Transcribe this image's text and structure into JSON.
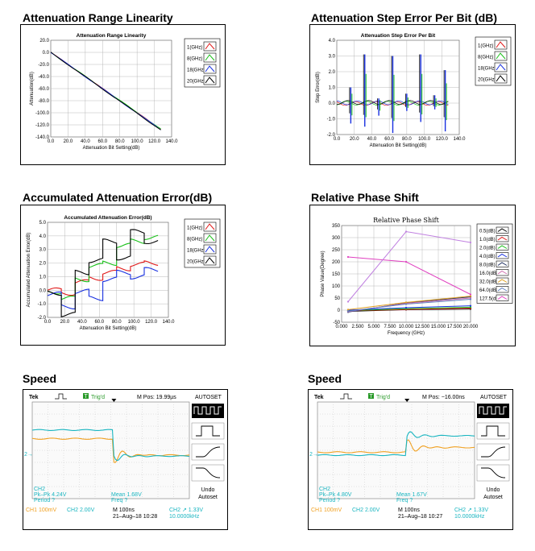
{
  "sections": {
    "s1": "Attenuation Range Linearity",
    "s2": "Attenuation Step Error Per Bit (dB)",
    "s3": "Accumulated Attenuation Error(dB)",
    "s4": "Relative Phase Shift",
    "s5": "Speed",
    "s6": "Speed"
  },
  "colors": {
    "red": "#e01818",
    "green": "#18c018",
    "blue": "#1830e0",
    "black": "#000000",
    "cyan": "#19b5c0",
    "orange": "#f0a020"
  },
  "chart_data": [
    {
      "type": "line",
      "title": "Attenuation Range Linearity",
      "xlabel": "Attenuation Bit Setting(dB)",
      "ylabel": "Attenuation(dB)",
      "xlim": [
        0,
        140
      ],
      "ylim": [
        -140,
        20
      ],
      "xticks": [
        "0.0",
        "20.0",
        "40.0",
        "60.0",
        "80.0",
        "100.0",
        "120.0",
        "140.0"
      ],
      "yticks": [
        "20.0",
        "0.0",
        "-20.0",
        "-40.0",
        "-60.0",
        "-80.0",
        "-100.0",
        "-120.0",
        "-140.0"
      ],
      "legend": [
        "1(GHz)",
        "8(GHz)",
        "18(GHz)",
        "20(GHz)"
      ],
      "series": [
        {
          "name": "1(GHz)",
          "x": [
            0,
            127.5
          ],
          "y": [
            0,
            -127.5
          ]
        },
        {
          "name": "8(GHz)",
          "x": [
            0,
            127.5
          ],
          "y": [
            0,
            -127
          ]
        },
        {
          "name": "18(GHz)",
          "x": [
            0,
            127.5
          ],
          "y": [
            0,
            -128
          ]
        },
        {
          "name": "20(GHz)",
          "x": [
            0,
            127.5
          ],
          "y": [
            0,
            -128.5
          ]
        }
      ]
    },
    {
      "type": "line",
      "title": "Attenuation Step Error Per Bit",
      "xlabel": "Attenuation Bit Setting(dB)",
      "ylabel": "Step Error(dB)",
      "xlim": [
        0,
        140
      ],
      "ylim": [
        -2,
        4
      ],
      "xticks": [
        "0.0",
        "20.0",
        "40.0",
        "60.0",
        "80.0",
        "100.0",
        "120.0",
        "140.0"
      ],
      "yticks": [
        "4.0",
        "3.0",
        "2.0",
        "1.0",
        "0.0",
        "-1.0",
        "-2.0"
      ],
      "legend": [
        "1(GHz)",
        "8(GHz)",
        "18(GHz)",
        "20(GHz)"
      ],
      "spikes": [
        {
          "x": 16,
          "hi": 1.0,
          "lo": -1.3
        },
        {
          "x": 32,
          "hi": 3.1,
          "lo": -1.5
        },
        {
          "x": 48,
          "hi": 0.3,
          "lo": -0.8
        },
        {
          "x": 64,
          "hi": 3.0,
          "lo": -1.9
        },
        {
          "x": 80,
          "hi": 0.6,
          "lo": -0.5
        },
        {
          "x": 96,
          "hi": 3.1,
          "lo": -1.2
        },
        {
          "x": 112,
          "hi": 0.5,
          "lo": -0.4
        },
        {
          "x": 124,
          "hi": 2.1,
          "lo": -1.8
        }
      ]
    },
    {
      "type": "line",
      "title": "Accumulated Attenuation Error(dB)",
      "xlabel": "Attenuation Bit Setting(dB)",
      "ylabel": "Accumulated Attenuation Error(dB)",
      "xlim": [
        0,
        140
      ],
      "ylim": [
        -2,
        5
      ],
      "xticks": [
        "0.0",
        "20.0",
        "40.0",
        "60.0",
        "80.0",
        "100.0",
        "120.0",
        "140.0"
      ],
      "yticks": [
        "5.0",
        "4.0",
        "3.0",
        "2.0",
        "1.0",
        "0.0",
        "-1.0",
        "-2.0"
      ],
      "legend": [
        "1(GHz)",
        "8(GHz)",
        "18(GHz)",
        "20(GHz)"
      ],
      "steps_x": [
        0,
        16,
        32,
        48,
        64,
        80,
        96,
        112,
        128
      ],
      "series": [
        {
          "name": "1(GHz)",
          "y": [
            0.0,
            -0.2,
            0.6,
            0.9,
            1.3,
            1.6,
            1.9,
            2.0
          ]
        },
        {
          "name": "8(GHz)",
          "y": [
            -0.1,
            -0.6,
            0.8,
            1.8,
            2.0,
            3.3,
            3.6,
            3.9
          ]
        },
        {
          "name": "18(GHz)",
          "y": [
            -0.3,
            -1.2,
            -0.1,
            -0.6,
            0.8,
            1.3,
            1.0,
            1.5
          ]
        },
        {
          "name": "20(GHz)",
          "y": [
            -0.2,
            -1.8,
            1.3,
            2.2,
            3.6,
            2.4,
            4.3,
            3.6
          ]
        }
      ]
    },
    {
      "type": "line",
      "title": "Relative Phase Shift",
      "xlabel": "Frequency (GHz)",
      "ylabel": "Phase Value(Degree)",
      "xlim": [
        0,
        20
      ],
      "ylim": [
        -50,
        350
      ],
      "xticks": [
        "0.000",
        "2.500",
        "5.000",
        "7.500",
        "10.000",
        "12.500",
        "15.000",
        "17.500",
        "20.000"
      ],
      "yticks": [
        "350",
        "300",
        "250",
        "200",
        "150",
        "100",
        "50",
        "0",
        "-50"
      ],
      "legend": [
        "0.5(dB)",
        "1.0(dB)",
        "2.0(dB)",
        "4.0(dB)",
        "8.0(dB)",
        "16.0(dB)",
        "32.0(dB)",
        "64.0(dB)",
        "127.5(dB)"
      ],
      "series": [
        {
          "name": "0.5(dB)",
          "color": "#000000",
          "x": [
            1,
            10,
            20
          ],
          "y": [
            -5,
            2,
            5
          ]
        },
        {
          "name": "1.0(dB)",
          "color": "#e01818",
          "x": [
            1,
            10,
            20
          ],
          "y": [
            -3,
            3,
            8
          ]
        },
        {
          "name": "2.0(dB)",
          "color": "#18c018",
          "x": [
            1,
            10,
            20
          ],
          "y": [
            -2,
            6,
            12
          ]
        },
        {
          "name": "4.0(dB)",
          "color": "#1830e0",
          "x": [
            1,
            10,
            20
          ],
          "y": [
            0,
            10,
            18
          ]
        },
        {
          "name": "8.0(dB)",
          "color": "#203060",
          "x": [
            1,
            10,
            20
          ],
          "y": [
            -8,
            30,
            55
          ]
        },
        {
          "name": "16.0(dB)",
          "color": "#d070b0",
          "x": [
            1,
            10,
            20
          ],
          "y": [
            -6,
            28,
            50
          ]
        },
        {
          "name": "32.0(dB)",
          "color": "#e0a020",
          "x": [
            1,
            10,
            20
          ],
          "y": [
            2,
            32,
            58
          ]
        },
        {
          "name": "64.0(dB)",
          "color": "#6080c0",
          "x": [
            1,
            10,
            20
          ],
          "y": [
            -4,
            25,
            45
          ]
        },
        {
          "name": "127.5(dB)",
          "color": "#e040c0",
          "x": [
            1,
            10,
            20
          ],
          "y": [
            220,
            200,
            65
          ]
        },
        {
          "name": "",
          "color": "#c080e0",
          "x": [
            1,
            10,
            20
          ],
          "y": [
            35,
            325,
            280
          ]
        }
      ]
    }
  ],
  "scope1": {
    "brand": "Tek",
    "trig": "Trig'd",
    "trig_mark": "T",
    "mpos": "M Pos: 19.99µs",
    "autoset": "AUTOSET",
    "ch2_meas_title": "CH2",
    "pkpk": "Pk–Pk 4.24V",
    "period": "Period ?",
    "mean": "Mean 1.68V",
    "freq": "Freq ?",
    "undo": "Undo",
    "autoset2": "Autoset",
    "ch1": "CH1 100mV",
    "ch2": "CH2 2.00V",
    "m": "M 100ns",
    "date": "21–Aug–18 10:28",
    "trigset": "CH2 ↗ 1.33V",
    "freqset": "10.0000kHz",
    "marker2": "2→"
  },
  "scope2": {
    "brand": "Tek",
    "trig": "Trig'd",
    "trig_mark": "T",
    "mpos": "M Pos: −16.00ns",
    "autoset": "AUTOSET",
    "ch2_meas_title": "CH2",
    "pkpk": "Pk–Pk 4.80V",
    "period": "Period ?",
    "mean": "Mean 1.67V",
    "freq": "Freq ?",
    "undo": "Undo",
    "autoset2": "Autoset",
    "ch1": "CH1 100mV",
    "ch2": "CH2 2.00V",
    "m": "M 100ns",
    "date": "21–Aug–18 10:27",
    "trigset": "CH2 ↗ 1.33V",
    "freqset": "10.0000kHz",
    "marker2": "2→"
  }
}
